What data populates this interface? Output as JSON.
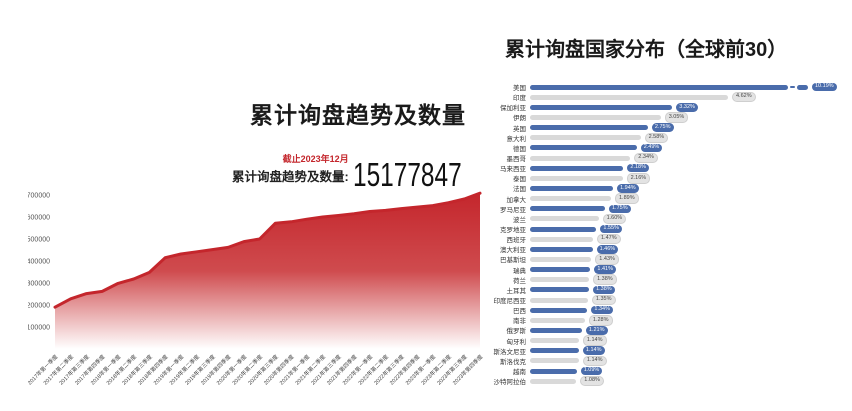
{
  "page": {
    "background": "#ffffff"
  },
  "left_chart": {
    "title": "累计询盘趋势及数量",
    "asof_label": "截止2023年12月",
    "total_label": "累计询盘趋势及数量:",
    "total_value": "15177847"
  },
  "right_chart": {
    "title": "累计询盘国家分布（全球前30）"
  },
  "colors": {
    "accent_red": "#c4262c",
    "bar_blue": "#4a6cab",
    "bar_gray": "#d9d9d9",
    "pill_gray_bg": "#e3e3e3",
    "text_dark": "#1a1a1a",
    "text_muted": "#555555"
  },
  "chart_data": [
    {
      "type": "area",
      "title": "累计询盘趋势及数量",
      "xlabel": "",
      "ylabel": "",
      "ylim": [
        0,
        760000
      ],
      "yticks": [
        700000,
        600000,
        500000,
        400000,
        300000,
        200000,
        100000
      ],
      "grid": false,
      "legend": false,
      "line_color": "#c4262c",
      "fill": "vertical red-to-white gradient",
      "categories": [
        "2017年第一季度",
        "2017年第二季度",
        "2017年第三季度",
        "2017年第四季度",
        "2018年第一季度",
        "2018年第二季度",
        "2018年第三季度",
        "2018年第四季度",
        "2019年第一季度",
        "2019年第二季度",
        "2019年第三季度",
        "2019年第四季度",
        "2020年第一季度",
        "2020年第二季度",
        "2020年第三季度",
        "2020年第四季度",
        "2021年第一季度",
        "2021年第二季度",
        "2021年第三季度",
        "2021年第四季度",
        "2022年第一季度",
        "2022年第二季度",
        "2022年第三季度",
        "2022年第四季度",
        "2023年第一季度",
        "2023年第二季度",
        "2023年第三季度",
        "2023年第四季度"
      ],
      "values": [
        190000,
        228000,
        252000,
        262000,
        298000,
        318000,
        348000,
        415000,
        432000,
        442000,
        452000,
        462000,
        488000,
        500000,
        572000,
        578000,
        590000,
        600000,
        607000,
        615000,
        625000,
        630000,
        638000,
        645000,
        652000,
        665000,
        682000,
        708000
      ]
    },
    {
      "type": "bar",
      "orientation": "horizontal",
      "title": "累计询盘国家分布（全球前30）",
      "value_unit": "%",
      "legend": false,
      "first_bar_axis_break": true,
      "bar_color_alternating": [
        "#4a6cab",
        "#d9d9d9"
      ],
      "categories": [
        "美国",
        "印度",
        "保加利亚",
        "伊朗",
        "英国",
        "意大利",
        "德国",
        "墨西哥",
        "马来西亚",
        "泰国",
        "法国",
        "加拿大",
        "罗马尼亚",
        "波兰",
        "克罗地亚",
        "西班牙",
        "澳大利亚",
        "巴基斯坦",
        "瑞典",
        "荷兰",
        "土耳其",
        "印度尼西亚",
        "巴西",
        "南非",
        "俄罗斯",
        "匈牙利",
        "斯洛文尼亚",
        "斯洛伐克",
        "越南",
        "沙特阿拉伯"
      ],
      "values": [
        10.19,
        4.62,
        3.32,
        3.05,
        2.75,
        2.58,
        2.49,
        2.34,
        2.18,
        2.16,
        1.94,
        1.89,
        1.75,
        1.6,
        1.55,
        1.47,
        1.46,
        1.43,
        1.41,
        1.38,
        1.38,
        1.35,
        1.34,
        1.28,
        1.21,
        1.14,
        1.14,
        1.14,
        1.09,
        1.08
      ],
      "labels": [
        "10.19%",
        "4.62%",
        "3.32%",
        "3.05%",
        "2.75%",
        "2.58%",
        "2.49%",
        "2.34%",
        "2.18%",
        "2.16%",
        "1.94%",
        "1.89%",
        "1.75%",
        "1.60%",
        "1.55%",
        "1.47%",
        "1.46%",
        "1.43%",
        "1.41%",
        "1.38%",
        "1.38%",
        "1.35%",
        "1.34%",
        "1.28%",
        "1.21%",
        "1.14%",
        "1.14%",
        "1.14%",
        "1.09%",
        "1.08%"
      ]
    }
  ]
}
